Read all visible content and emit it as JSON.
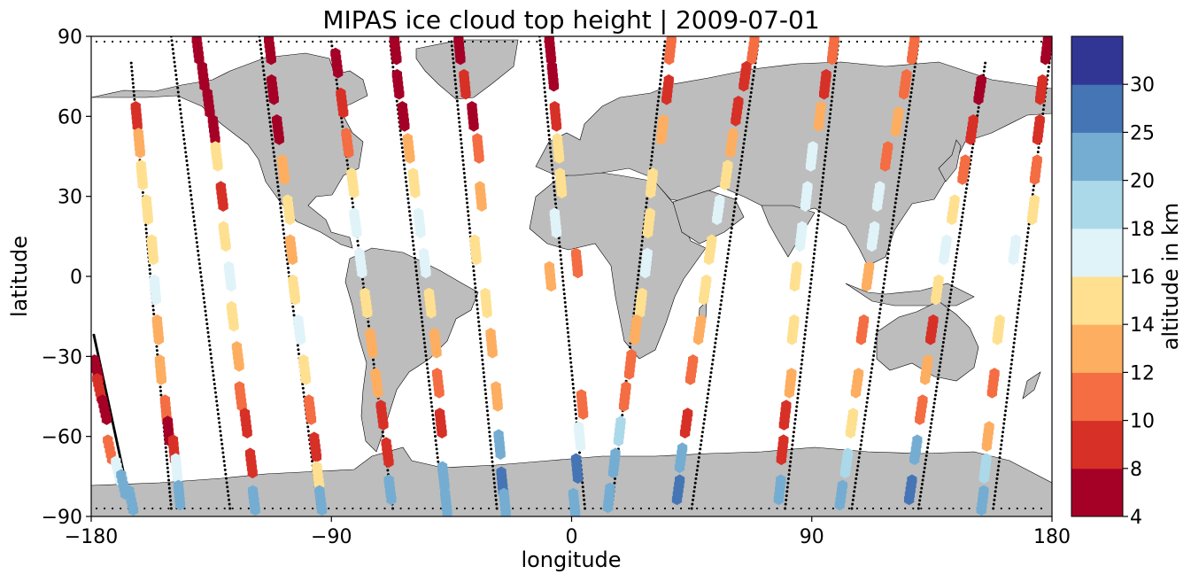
{
  "chart_data": {
    "type": "scatter",
    "title": "MIPAS ice cloud top height | 2009-07-01",
    "xlabel": "longitude",
    "ylabel": "latitude",
    "xlim": [
      -180,
      180
    ],
    "ylim": [
      -90,
      90
    ],
    "xticks": [
      -180,
      -90,
      0,
      90,
      180
    ],
    "xtick_labels": [
      "−180",
      "−90",
      "0",
      "90",
      "180"
    ],
    "yticks": [
      90,
      60,
      30,
      0,
      -30,
      -60,
      -90
    ],
    "ytick_labels": [
      "90",
      "60",
      "30",
      "0",
      "−30",
      "−60",
      "−90"
    ],
    "colorbar": {
      "label": "altitude in km",
      "bounds": [
        4,
        8,
        10,
        12,
        14,
        16,
        18,
        20,
        25,
        30
      ],
      "tick_labels": [
        "4",
        "8",
        "10",
        "12",
        "14",
        "16",
        "18",
        "20",
        "25",
        "30"
      ],
      "colors": [
        "#a50026",
        "#d73027",
        "#f46d43",
        "#fdae61",
        "#fee090",
        "#e0f3f8",
        "#abd9e9",
        "#74add1",
        "#4575b4",
        "#313695"
      ]
    },
    "background": "coastline map with land filled grey",
    "no_cloud_marker": "black dots along orbit tracks",
    "tracks": [
      {
        "lon": [
          -179,
          -165
        ],
        "lat": [
          -22,
          -87
        ],
        "points": [
          [
            -178,
            -35,
            7
          ],
          [
            -177,
            -42,
            8
          ],
          [
            -175,
            -50,
            7
          ],
          [
            -173,
            -65,
            11
          ],
          [
            -170,
            -73,
            17
          ],
          [
            -168,
            -78,
            20
          ],
          [
            -165,
            -84,
            21
          ]
        ]
      },
      {
        "lon": [
          -165,
          -150
        ],
        "lat": [
          80,
          -87
        ],
        "points": [
          [
            -163,
            60,
            9
          ],
          [
            -162,
            50,
            12
          ],
          [
            -161,
            38,
            14
          ],
          [
            -159,
            25,
            15
          ],
          [
            -157,
            10,
            15
          ],
          [
            -156,
            -5,
            16
          ],
          [
            -155,
            -20,
            13
          ],
          [
            -154,
            -35,
            12
          ],
          [
            -152,
            -50,
            11
          ],
          [
            -151,
            -58,
            6
          ],
          [
            -149,
            -65,
            8
          ],
          [
            -148,
            -72,
            17
          ],
          [
            -147,
            -82,
            21
          ]
        ]
      },
      {
        "lon": [
          -150,
          -128
        ],
        "lat": [
          90,
          -87
        ],
        "points": [
          [
            -140,
            85,
            6
          ],
          [
            -138,
            75,
            6
          ],
          [
            -136,
            65,
            7
          ],
          [
            -134,
            55,
            6
          ],
          [
            -133,
            45,
            14
          ],
          [
            -131,
            30,
            9
          ],
          [
            -130,
            15,
            14
          ],
          [
            -128,
            0,
            16
          ],
          [
            -127,
            -15,
            14
          ],
          [
            -125,
            -30,
            12
          ],
          [
            -124,
            -45,
            10
          ],
          [
            -122,
            -55,
            8
          ],
          [
            -120,
            -70,
            8
          ],
          [
            -119,
            -84,
            20
          ]
        ]
      },
      {
        "lon": [
          -117,
          -95
        ],
        "lat": [
          90,
          -87
        ],
        "points": [
          [
            -113,
            85,
            6
          ],
          [
            -112,
            70,
            6
          ],
          [
            -110,
            55,
            7
          ],
          [
            -108,
            40,
            12
          ],
          [
            -106,
            25,
            14
          ],
          [
            -105,
            10,
            12
          ],
          [
            -104,
            -5,
            14
          ],
          [
            -102,
            -20,
            16
          ],
          [
            -100,
            -35,
            14
          ],
          [
            -98,
            -50,
            10
          ],
          [
            -96,
            -64,
            9
          ],
          [
            -95,
            -75,
            15
          ],
          [
            -94,
            -84,
            20
          ]
        ]
      },
      {
        "lon": [
          -90,
          -67
        ],
        "lat": [
          88,
          -87
        ],
        "points": [
          [
            -88,
            80,
            6
          ],
          [
            -86,
            65,
            8
          ],
          [
            -84,
            50,
            10
          ],
          [
            -82,
            35,
            14
          ],
          [
            -81,
            20,
            16
          ],
          [
            -79,
            5,
            17
          ],
          [
            -77,
            -10,
            15
          ],
          [
            -75,
            -25,
            13
          ],
          [
            -73,
            -40,
            12
          ],
          [
            -71,
            -52,
            8
          ],
          [
            -69,
            -66,
            9
          ],
          [
            -68,
            -80,
            20
          ]
        ]
      },
      {
        "lon": [
          -68,
          -48
        ],
        "lat": [
          88,
          -87
        ],
        "points": [
          [
            -66,
            85,
            6
          ],
          [
            -65,
            72,
            6
          ],
          [
            -63,
            60,
            7
          ],
          [
            -61,
            48,
            12
          ],
          [
            -59,
            35,
            14
          ],
          [
            -57,
            20,
            16
          ],
          [
            -55,
            5,
            17
          ],
          [
            -53,
            -10,
            14
          ],
          [
            -51,
            -25,
            12
          ],
          [
            -50,
            -40,
            11
          ],
          [
            -49,
            -55,
            8
          ],
          [
            -48,
            -75,
            21
          ],
          [
            -47,
            -85,
            20
          ]
        ]
      },
      {
        "lon": [
          -45,
          -28
        ],
        "lat": [
          88,
          -87
        ],
        "points": [
          [
            -42,
            85,
            6
          ],
          [
            -40,
            72,
            8
          ],
          [
            -37,
            60,
            7
          ],
          [
            -35,
            48,
            10
          ],
          [
            -34,
            30,
            13
          ],
          [
            -36,
            10,
            14
          ],
          [
            -32,
            -10,
            14
          ],
          [
            -30,
            -25,
            12
          ],
          [
            -28,
            -45,
            12
          ],
          [
            -27,
            -63,
            22
          ],
          [
            -26,
            -77,
            25
          ],
          [
            -25,
            -85,
            21
          ]
        ]
      },
      {
        "lon": [
          -12,
          5
        ],
        "lat": [
          90,
          -87
        ],
        "points": [
          [
            -8,
            85,
            7
          ],
          [
            -7,
            75,
            6
          ],
          [
            -6,
            60,
            9
          ],
          [
            -5,
            48,
            15
          ],
          [
            -4,
            35,
            14
          ],
          [
            -6,
            20,
            16
          ],
          [
            -8,
            0,
            12
          ],
          [
            2,
            5,
            11
          ],
          [
            4,
            -48,
            10
          ],
          [
            3,
            -60,
            17
          ],
          [
            2,
            -72,
            25
          ],
          [
            1,
            -85,
            21
          ]
        ]
      },
      {
        "lon": [
          35,
          15
        ],
        "lat": [
          88,
          -87
        ],
        "points": [
          [
            37,
            85,
            11
          ],
          [
            36,
            70,
            8
          ],
          [
            34,
            55,
            12
          ],
          [
            30,
            35,
            14
          ],
          [
            29,
            20,
            15
          ],
          [
            28,
            5,
            16
          ],
          [
            26,
            -10,
            15
          ],
          [
            24,
            -20,
            13
          ],
          [
            22,
            -33,
            11
          ],
          [
            20,
            -45,
            10
          ],
          [
            18,
            -58,
            18
          ],
          [
            16,
            -70,
            22
          ],
          [
            14,
            -83,
            20
          ]
        ]
      },
      {
        "lon": [
          70,
          45
        ],
        "lat": [
          88,
          -87
        ],
        "points": [
          [
            68,
            85,
            10
          ],
          [
            65,
            75,
            8
          ],
          [
            62,
            62,
            9
          ],
          [
            60,
            50,
            12
          ],
          [
            58,
            38,
            14
          ],
          [
            55,
            25,
            16
          ],
          [
            52,
            10,
            15
          ],
          [
            50,
            -5,
            14
          ],
          [
            48,
            -20,
            12
          ],
          [
            45,
            -35,
            10
          ],
          [
            43,
            -55,
            9
          ],
          [
            41,
            -68,
            21
          ],
          [
            40,
            -80,
            25
          ]
        ]
      },
      {
        "lon": [
          100,
          80
        ],
        "lat": [
          88,
          -87
        ],
        "points": [
          [
            98,
            85,
            11
          ],
          [
            95,
            72,
            9
          ],
          [
            93,
            60,
            12
          ],
          [
            90,
            45,
            16
          ],
          [
            88,
            30,
            17
          ],
          [
            86,
            15,
            17
          ],
          [
            84,
            0,
            15
          ],
          [
            83,
            -20,
            14
          ],
          [
            82,
            -40,
            12
          ],
          [
            80,
            -52,
            9
          ],
          [
            79,
            -65,
            8
          ],
          [
            78,
            -80,
            21
          ]
        ]
      },
      {
        "lon": [
          130,
          105
        ],
        "lat": [
          88,
          -87
        ],
        "points": [
          [
            128,
            85,
            11
          ],
          [
            125,
            72,
            10
          ],
          [
            122,
            58,
            12
          ],
          [
            118,
            45,
            10
          ],
          [
            115,
            30,
            17
          ],
          [
            113,
            15,
            16
          ],
          [
            111,
            0,
            13
          ],
          [
            109,
            -20,
            11
          ],
          [
            107,
            -40,
            13
          ],
          [
            105,
            -55,
            14
          ],
          [
            103,
            -70,
            19
          ],
          [
            101,
            -82,
            20
          ]
        ]
      },
      {
        "lon": [
          155,
          130
        ],
        "lat": [
          80,
          -87
        ],
        "points": [
          [
            153,
            70,
            7
          ],
          [
            150,
            55,
            9
          ],
          [
            147,
            40,
            11
          ],
          [
            143,
            25,
            15
          ],
          [
            140,
            10,
            16
          ],
          [
            137,
            -5,
            15
          ],
          [
            135,
            -20,
            9
          ],
          [
            133,
            -35,
            12
          ],
          [
            131,
            -50,
            10
          ],
          [
            129,
            -65,
            20
          ],
          [
            127,
            -80,
            25
          ]
        ]
      },
      {
        "lon": [
          180,
          158
        ],
        "lat": [
          88,
          -87
        ],
        "points": [
          [
            178,
            85,
            7
          ],
          [
            176,
            70,
            9
          ],
          [
            175,
            55,
            8
          ],
          [
            174,
            40,
            11
          ],
          [
            173,
            25,
            14
          ],
          [
            166,
            10,
            16
          ],
          [
            160,
            -20,
            15
          ],
          [
            158,
            -40,
            10
          ],
          [
            156,
            -60,
            13
          ],
          [
            155,
            -72,
            19
          ],
          [
            154,
            -84,
            20
          ]
        ]
      }
    ]
  }
}
